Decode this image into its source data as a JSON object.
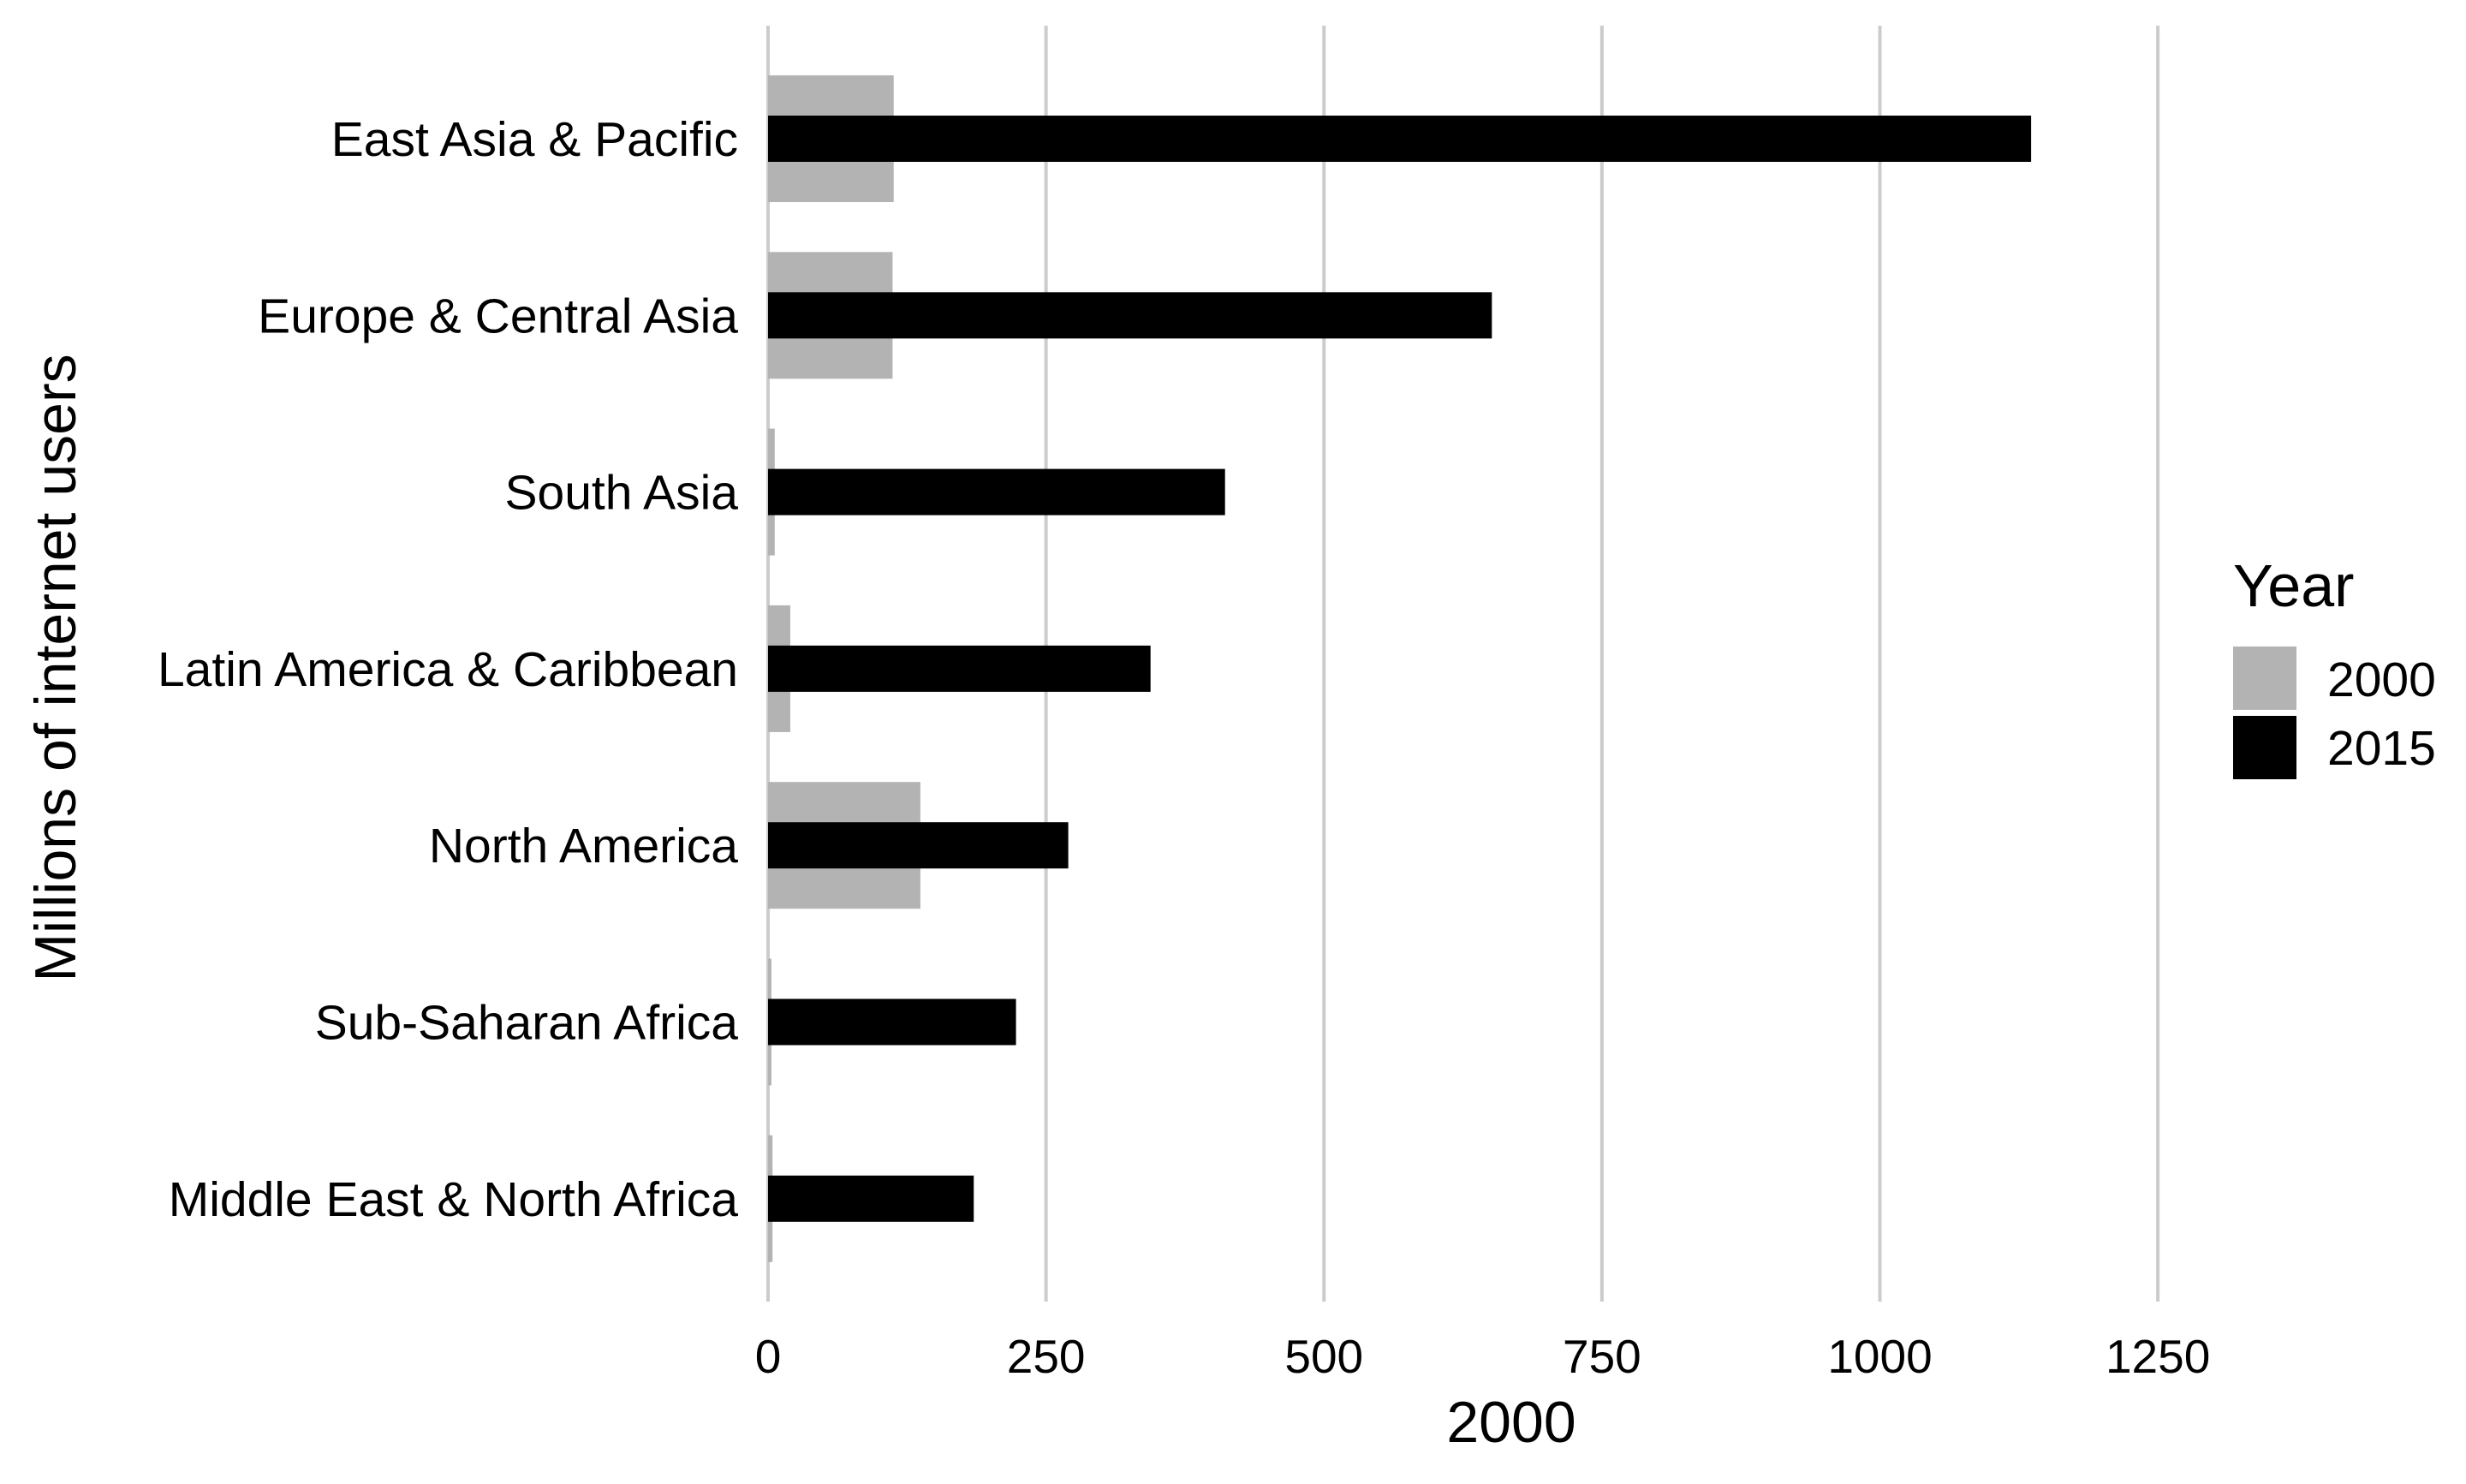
{
  "chart_data": {
    "type": "bar",
    "orientation": "horizontal",
    "categories": [
      "East Asia & Pacific",
      "Europe & Central Asia",
      "South Asia",
      "Latin America & Caribbean",
      "North America",
      "Sub-Saharan Africa",
      "Middle East & North Africa"
    ],
    "series": [
      {
        "name": "2000",
        "color": "#b3b3b3",
        "values": [
          113,
          112,
          6,
          20,
          137,
          3,
          4
        ]
      },
      {
        "name": "2015",
        "color": "#000000",
        "values": [
          1136,
          651,
          411,
          344,
          270,
          223,
          185
        ]
      }
    ],
    "xlabel": "2000",
    "ylabel": "Millions of internet users",
    "xlim": [
      0,
      1390
    ],
    "xticks": [
      0,
      250,
      500,
      750,
      1000,
      1250
    ],
    "xtick_labels": [
      "0",
      "250",
      "500",
      "750",
      "1000",
      "1250"
    ],
    "grid": "vertical major gridlines",
    "gridline_color": "#cccccc",
    "legend": {
      "title": "Year",
      "placement": "right",
      "entries": [
        "2000",
        "2015"
      ]
    }
  }
}
